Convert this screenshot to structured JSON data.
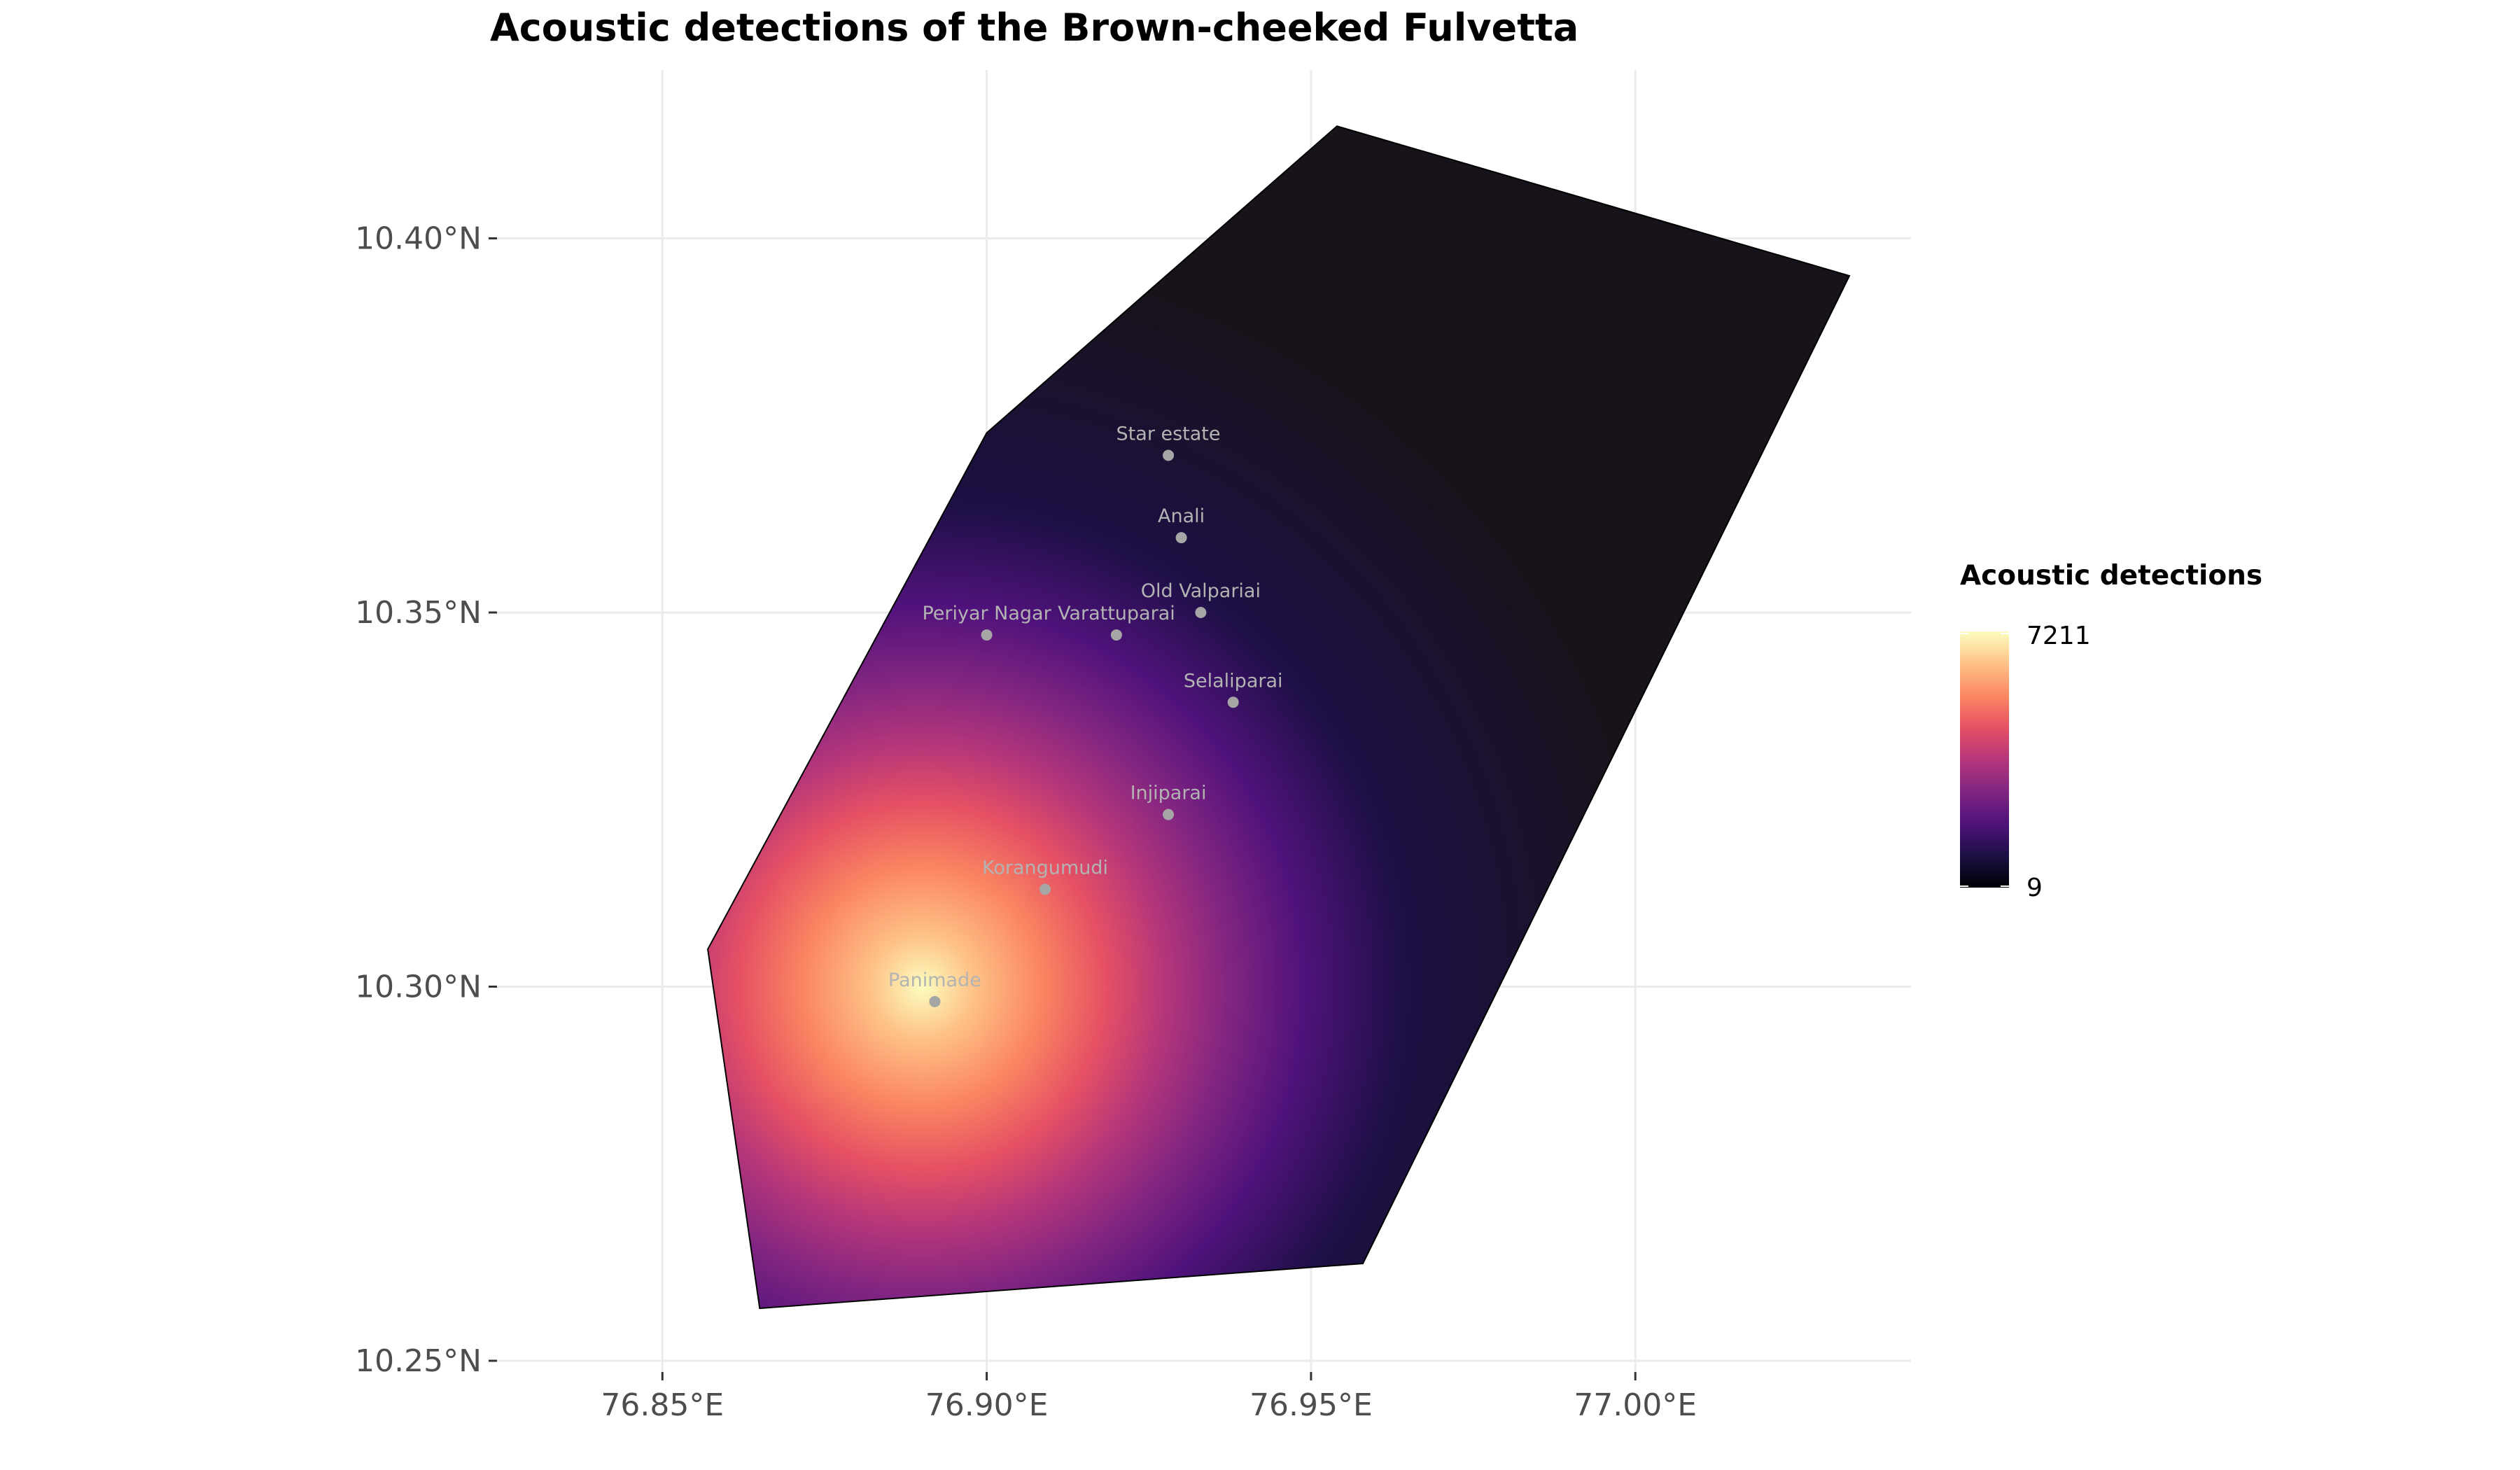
{
  "title": "Acoustic detections of the Brown-cheeked Fulvetta",
  "x_axis": {
    "ticks": [
      "76.85°E",
      "76.90°E",
      "76.95°E",
      "77.00°E"
    ],
    "values": [
      76.85,
      76.9,
      76.95,
      77.0
    ]
  },
  "y_axis": {
    "ticks": [
      "10.40°N",
      "10.35°N",
      "10.30°N",
      "10.25°N"
    ],
    "values": [
      10.4,
      10.35,
      10.3,
      10.25
    ]
  },
  "legend": {
    "title": "Acoustic detections",
    "max_label": "7211",
    "min_label": "9",
    "colors": [
      "#000004",
      "#1c1044",
      "#4f127b",
      "#812581",
      "#b5367a",
      "#e55064",
      "#fb8761",
      "#fec287",
      "#fcfdbf"
    ]
  },
  "study_area": {
    "boundary_lonlat": [
      [
        76.865,
        10.257
      ],
      [
        76.857,
        10.305
      ],
      [
        76.9,
        10.374
      ],
      [
        76.954,
        10.415
      ],
      [
        77.033,
        10.395
      ],
      [
        76.958,
        10.263
      ]
    ],
    "hotspot": {
      "lon": 76.89,
      "lat": 10.3,
      "value": 7211
    },
    "min_value": 9
  },
  "sites": [
    {
      "name": "Star estate",
      "lon": 76.928,
      "lat": 10.371
    },
    {
      "name": "Anali",
      "lon": 76.93,
      "lat": 10.36
    },
    {
      "name": "Old Valpariai",
      "lon": 76.933,
      "lat": 10.35
    },
    {
      "name": "Varattuparai",
      "lon": 76.92,
      "lat": 10.347
    },
    {
      "name": "Periyar Nagar",
      "lon": 76.9,
      "lat": 10.347
    },
    {
      "name": "Selaliparai",
      "lon": 76.938,
      "lat": 10.338
    },
    {
      "name": "Injiparai",
      "lon": 76.928,
      "lat": 10.323
    },
    {
      "name": "Korangumudi",
      "lon": 76.909,
      "lat": 10.313
    },
    {
      "name": "Panimade",
      "lon": 76.892,
      "lat": 10.298
    }
  ]
}
